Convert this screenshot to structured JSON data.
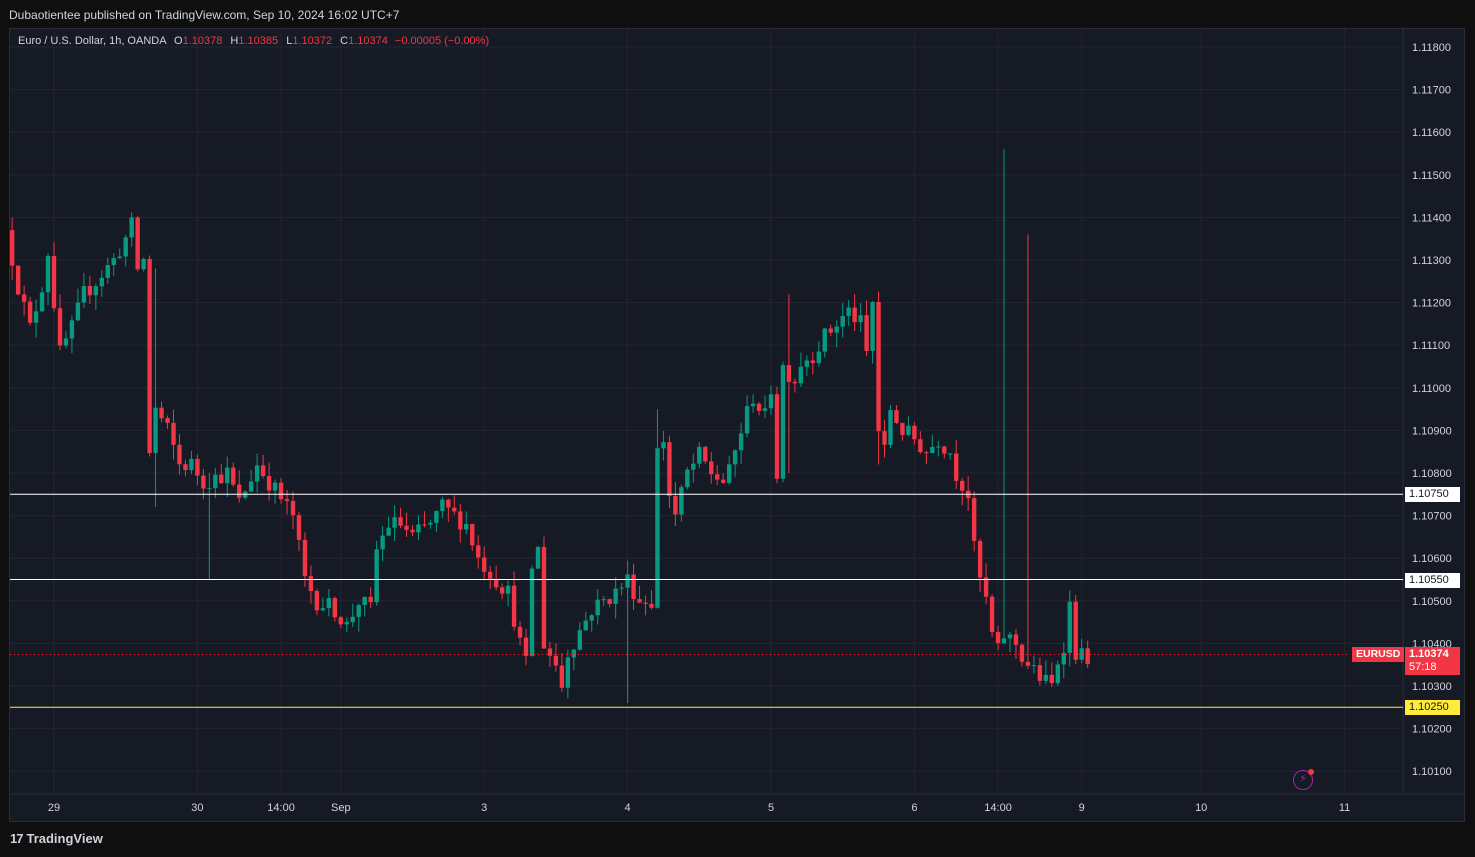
{
  "header": {
    "published": "Dubaotientee published on TradingView.com, Sep 10, 2024 16:02 UTC+7"
  },
  "legend": {
    "symbol": "Euro / U.S. Dollar, 1h, OANDA",
    "o_label": "O",
    "o_value": "1.10378",
    "h_label": "H",
    "h_value": "1.10385",
    "l_label": "L",
    "l_value": "1.10372",
    "c_label": "C",
    "c_value": "1.10374",
    "change": "−0.00005 (−0.00%)"
  },
  "footer": {
    "brand": "TradingView"
  },
  "colors": {
    "up": "#089981",
    "down": "#f23645",
    "support_line": "#ffffff",
    "key_line": "#ffeb3b",
    "current_price": "#f23645",
    "grid": "#232632",
    "background": "#161a25"
  },
  "chart_data": {
    "type": "candlestick",
    "symbol_tag": "EURUSD",
    "current_price": "1.10374",
    "countdown": "57:18",
    "y_ticks": [
      "1.11800",
      "1.11700",
      "1.11600",
      "1.11500",
      "1.11400",
      "1.11300",
      "1.11200",
      "1.11100",
      "1.11000",
      "1.10900",
      "1.10800",
      "1.10700",
      "1.10600",
      "1.10500",
      "1.10400",
      "1.10300",
      "1.10200",
      "1.10100"
    ],
    "ylim": [
      1.1006,
      1.1188
    ],
    "x_ticks": [
      {
        "label": "29",
        "hour": 0
      },
      {
        "label": "30",
        "hour": 24
      },
      {
        "label": "14:00",
        "hour": 38
      },
      {
        "label": "Sep",
        "hour": 48
      },
      {
        "label": "3",
        "hour": 72
      },
      {
        "label": "4",
        "hour": 96
      },
      {
        "label": "5",
        "hour": 120
      },
      {
        "label": "6",
        "hour": 144
      },
      {
        "label": "14:00",
        "hour": 158
      },
      {
        "label": "9",
        "hour": 172
      },
      {
        "label": "10",
        "hour": 192
      },
      {
        "label": "11",
        "hour": 216
      }
    ],
    "horizontal_lines": [
      {
        "price": 1.1075,
        "label": "1.10750",
        "style": "white"
      },
      {
        "price": 1.1055,
        "label": "1.10550",
        "style": "white"
      },
      {
        "price": 1.1025,
        "label": "1.10250",
        "style": "yellow"
      }
    ],
    "anchors": [
      [
        -7,
        1.1137
      ],
      [
        -5,
        1.1124
      ],
      [
        -3,
        1.1114
      ],
      [
        -1,
        1.1124
      ],
      [
        0,
        1.1132
      ],
      [
        2,
        1.1108
      ],
      [
        4,
        1.1114
      ],
      [
        6,
        1.1122
      ],
      [
        8,
        1.1125
      ],
      [
        11,
        1.113
      ],
      [
        13,
        1.1135
      ],
      [
        14,
        1.1138
      ],
      [
        15,
        1.1128
      ],
      [
        16,
        1.113
      ],
      [
        17,
        1.1085
      ],
      [
        18,
        1.1095
      ],
      [
        20,
        1.109
      ],
      [
        22,
        1.1082
      ],
      [
        24,
        1.1082
      ],
      [
        26,
        1.1078
      ],
      [
        30,
        1.108
      ],
      [
        32,
        1.1073
      ],
      [
        35,
        1.1082
      ],
      [
        37,
        1.1078
      ],
      [
        39,
        1.1074
      ],
      [
        41,
        1.107
      ],
      [
        43,
        1.1055
      ],
      [
        45,
        1.105
      ],
      [
        48,
        1.1048
      ],
      [
        50,
        1.1044
      ],
      [
        52,
        1.105
      ],
      [
        54,
        1.1048
      ],
      [
        55,
        1.1062
      ],
      [
        57,
        1.1068
      ],
      [
        59,
        1.1068
      ],
      [
        61,
        1.1065
      ],
      [
        64,
        1.1068
      ],
      [
        66,
        1.1072
      ],
      [
        68,
        1.107
      ],
      [
        70,
        1.1068
      ],
      [
        72,
        1.106
      ],
      [
        75,
        1.1055
      ],
      [
        77,
        1.1052
      ],
      [
        79,
        1.104
      ],
      [
        80,
        1.1035
      ],
      [
        81,
        1.1058
      ],
      [
        82,
        1.1062
      ],
      [
        83,
        1.104
      ],
      [
        85,
        1.1035
      ],
      [
        86,
        1.103
      ],
      [
        87,
        1.1038
      ],
      [
        89,
        1.1043
      ],
      [
        91,
        1.1048
      ],
      [
        93,
        1.105
      ],
      [
        95,
        1.1052
      ],
      [
        97,
        1.1055
      ],
      [
        99,
        1.105
      ],
      [
        101,
        1.105
      ],
      [
        102,
        1.1085
      ],
      [
        103,
        1.1088
      ],
      [
        104,
        1.1075
      ],
      [
        105,
        1.107
      ],
      [
        107,
        1.108
      ],
      [
        109,
        1.1084
      ],
      [
        111,
        1.108
      ],
      [
        113,
        1.1078
      ],
      [
        114,
        1.108
      ],
      [
        116,
        1.109
      ],
      [
        118,
        1.1098
      ],
      [
        120,
        1.1093
      ],
      [
        121,
        1.11
      ],
      [
        122,
        1.108
      ],
      [
        123,
        1.1105
      ],
      [
        125,
        1.1102
      ],
      [
        126,
        1.1106
      ],
      [
        128,
        1.1108
      ],
      [
        130,
        1.1112
      ],
      [
        132,
        1.1115
      ],
      [
        134,
        1.1118
      ],
      [
        136,
        1.1115
      ],
      [
        137,
        1.1108
      ],
      [
        138,
        1.112
      ],
      [
        139,
        1.109
      ],
      [
        140,
        1.1085
      ],
      [
        141,
        1.1095
      ],
      [
        143,
        1.109
      ],
      [
        145,
        1.1088
      ],
      [
        147,
        1.1085
      ],
      [
        149,
        1.1088
      ],
      [
        151,
        1.1085
      ],
      [
        152,
        1.108
      ],
      [
        154,
        1.1075
      ],
      [
        155,
        1.1062
      ],
      [
        156,
        1.1055
      ],
      [
        157,
        1.105
      ],
      [
        158,
        1.1042
      ],
      [
        159,
        1.1038
      ],
      [
        160,
        1.1042
      ],
      [
        162,
        1.104
      ],
      [
        163,
        1.1037
      ],
      [
        164,
        1.1035
      ],
      [
        166,
        1.1032
      ],
      [
        168,
        1.103
      ],
      [
        169,
        1.1036
      ],
      [
        170,
        1.104
      ],
      [
        171,
        1.1049
      ],
      [
        172,
        1.1038
      ],
      [
        173,
        1.1037
      ]
    ]
  }
}
